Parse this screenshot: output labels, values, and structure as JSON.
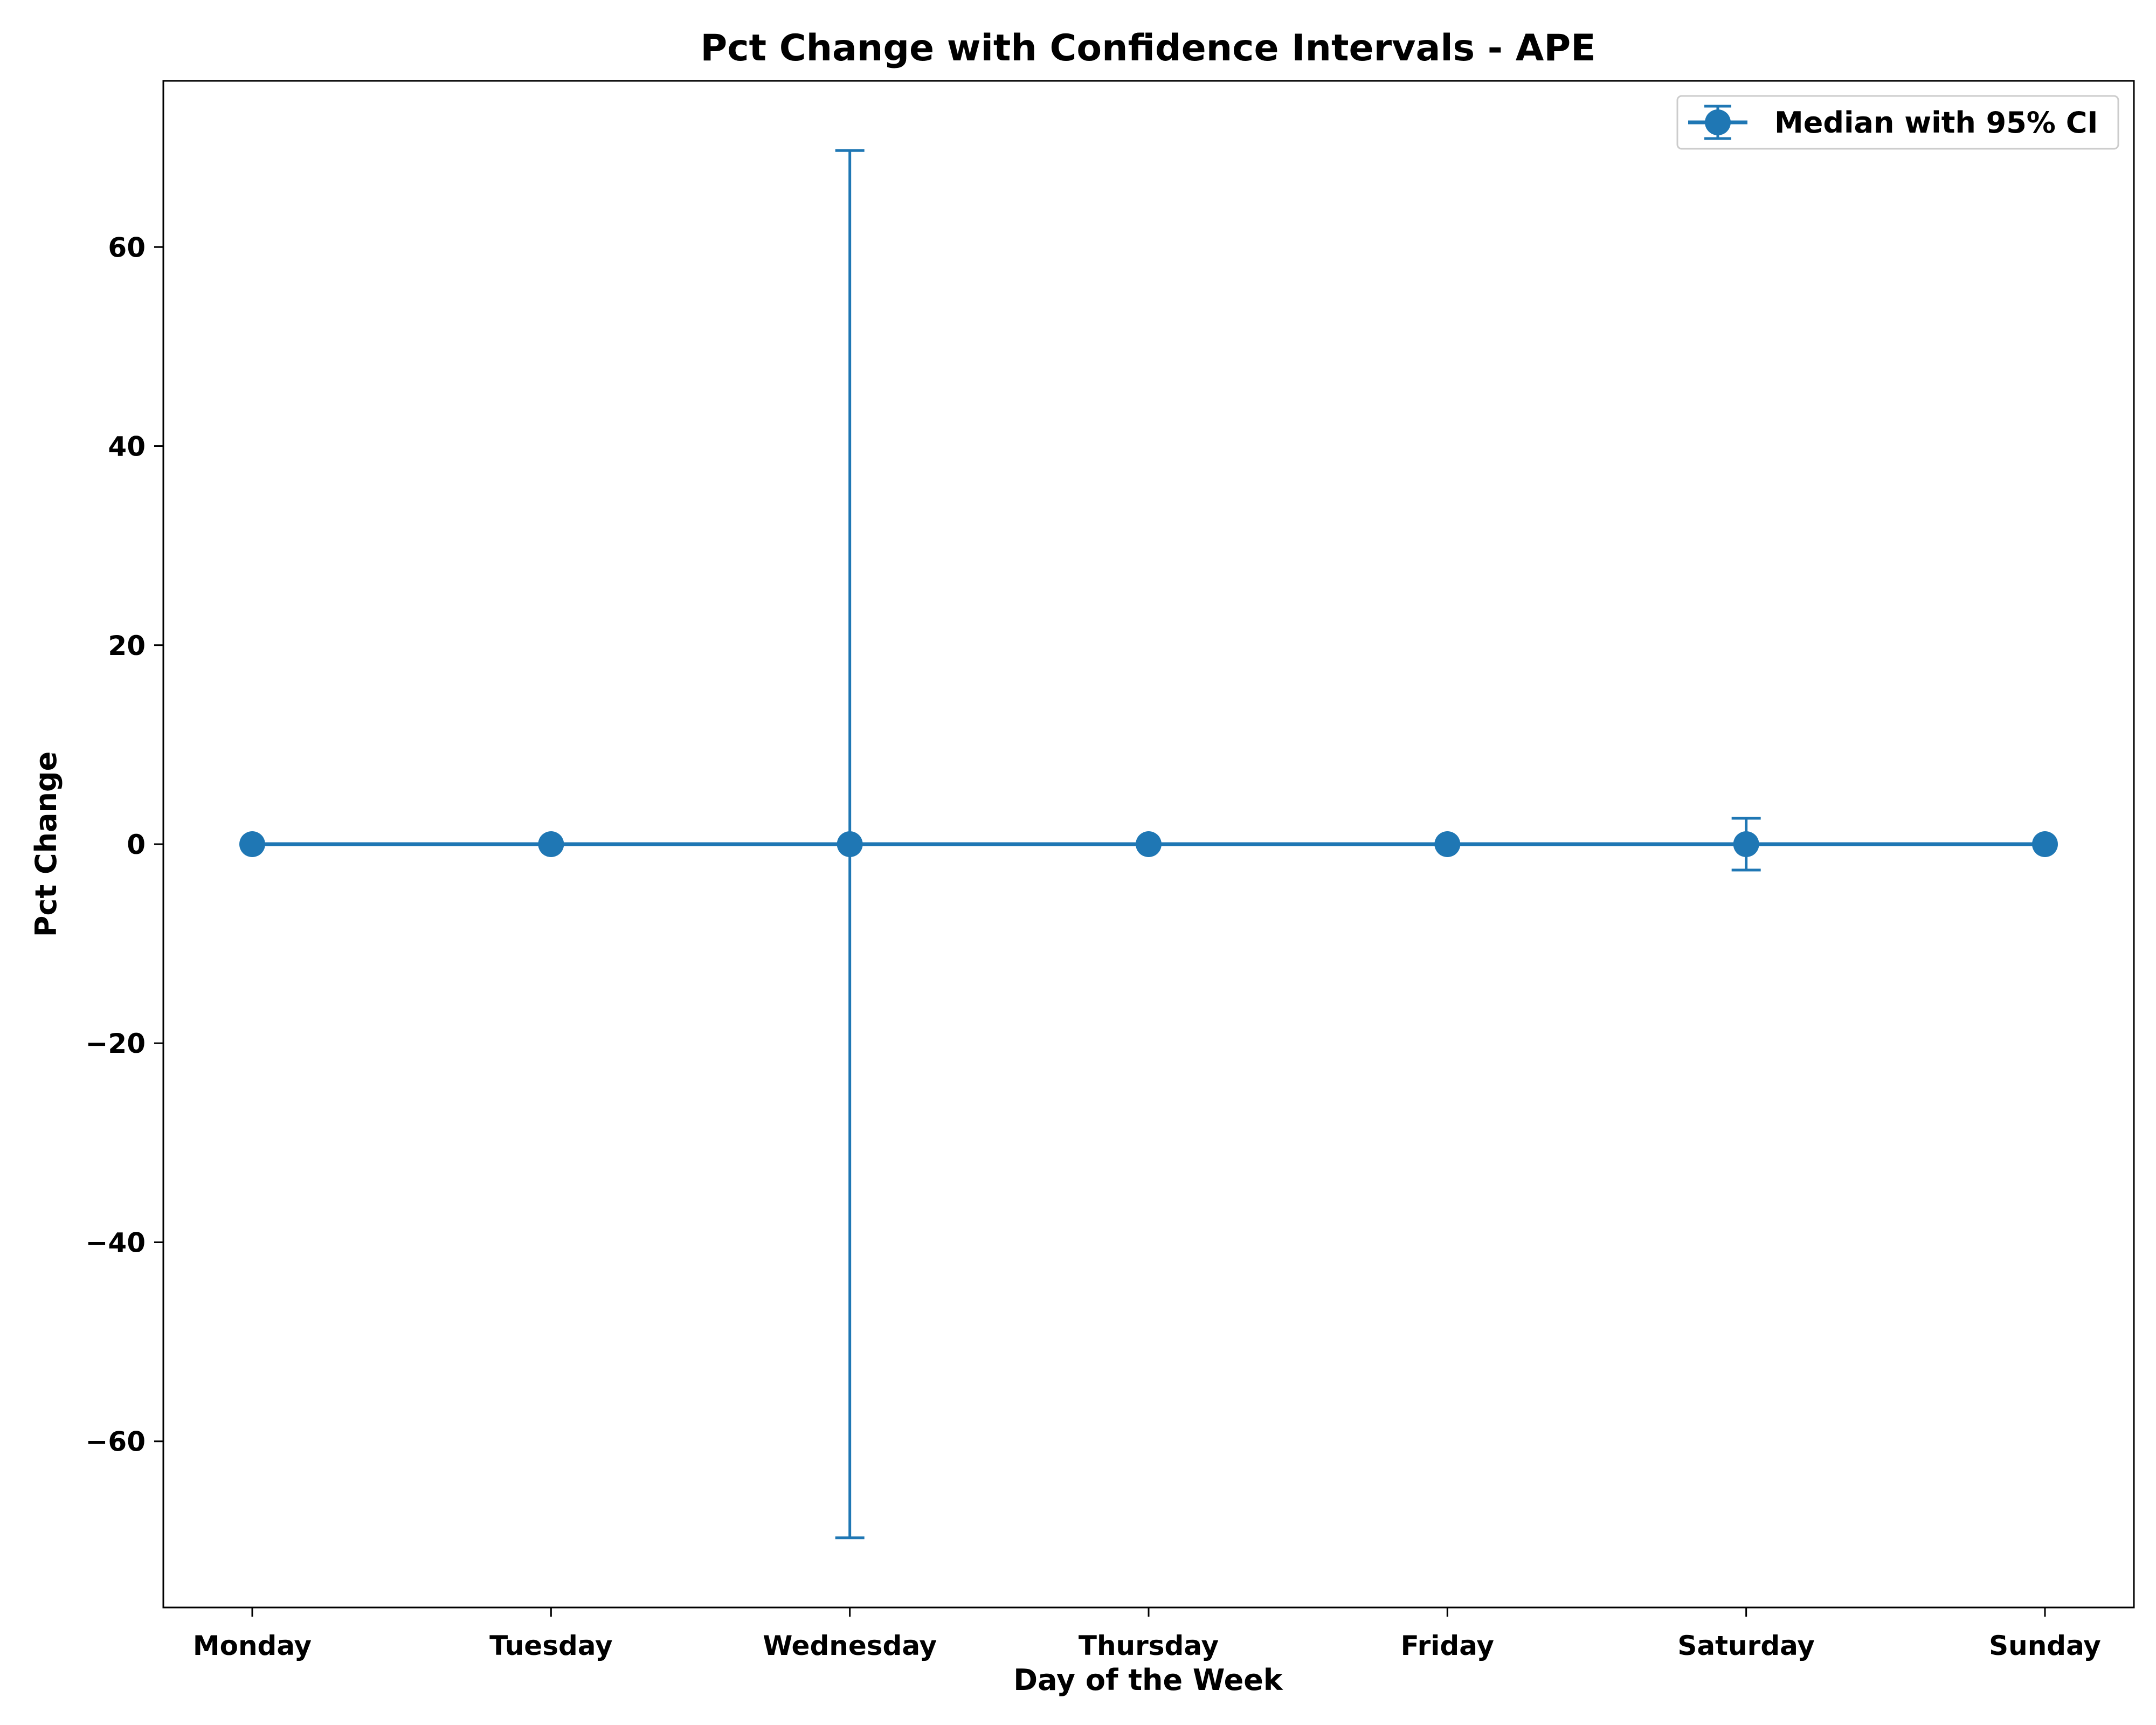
{
  "chart_data": {
    "type": "line",
    "title": "Pct Change with Confidence Intervals - APE",
    "xlabel": "Day of the Week",
    "ylabel": "Pct Change",
    "categories": [
      "Monday",
      "Tuesday",
      "Wednesday",
      "Thursday",
      "Friday",
      "Saturday",
      "Sunday"
    ],
    "series": [
      {
        "name": "Median with 95% CI",
        "values": [
          0,
          0,
          0,
          0,
          0,
          0,
          0
        ],
        "ci_lower": [
          0,
          0,
          -69.7,
          0,
          0,
          -2.6,
          0
        ],
        "ci_upper": [
          0,
          0,
          69.7,
          0,
          0,
          2.6,
          0
        ],
        "color": "#1f77b4"
      }
    ],
    "ylim": [
      -76.7,
      76.7
    ],
    "yticks": [
      -60,
      -40,
      -20,
      0,
      20,
      40,
      60
    ],
    "ytick_labels": [
      "−60",
      "−40",
      "−20",
      "0",
      "20",
      "40",
      "60"
    ],
    "grid": false,
    "legend_position": "upper right"
  }
}
